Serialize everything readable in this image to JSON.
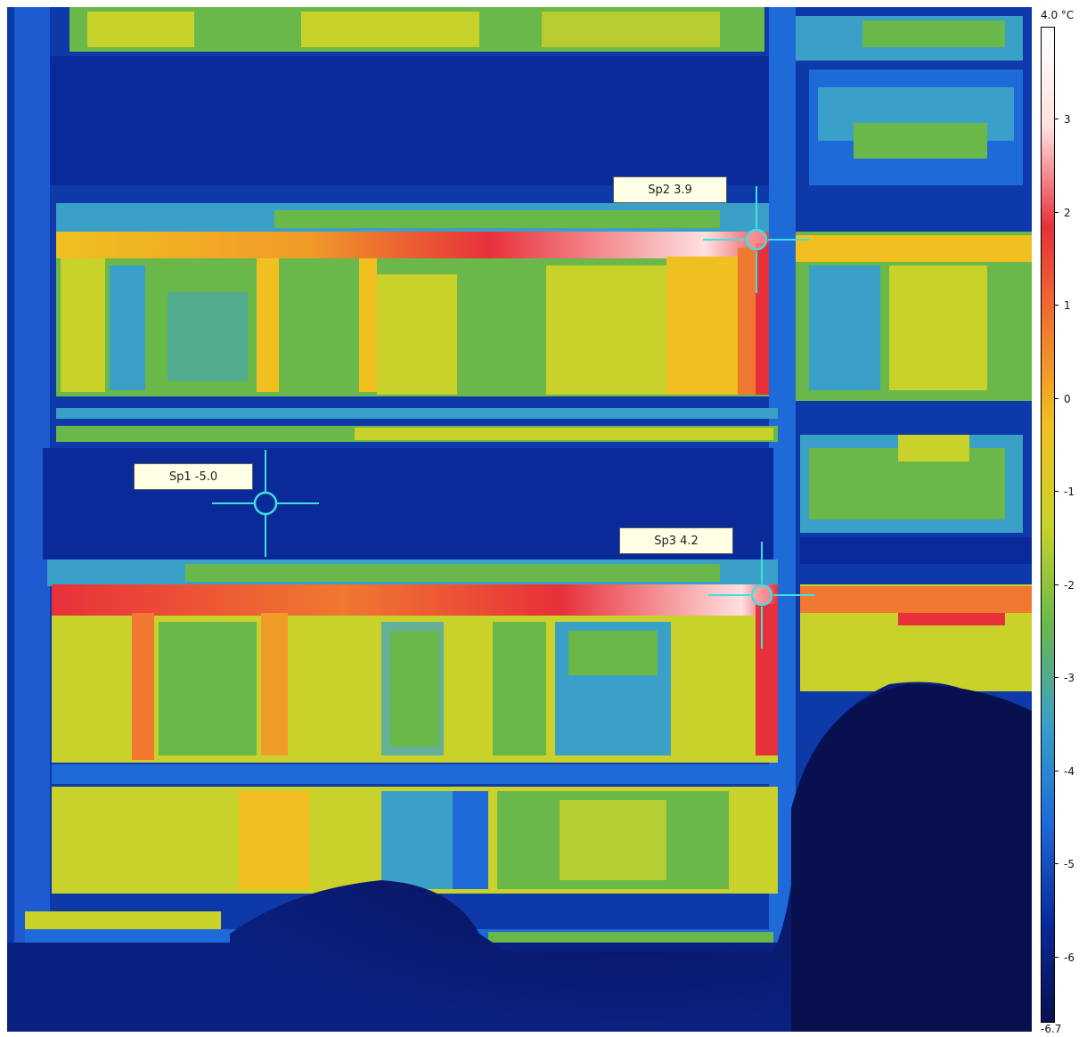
{
  "thermal_view": {
    "palette": [
      "#081050",
      "#0a2a9a",
      "#1e6ad8",
      "#3ba0c8",
      "#6ab84a",
      "#c8d22a",
      "#f0c020",
      "#f07830",
      "#e8303a",
      "#ffe0e0",
      "#ffffff"
    ]
  },
  "spots": [
    {
      "label": "Sp1 -5.0"
    },
    {
      "label": "Sp2 3.9"
    },
    {
      "label": "Sp3 4.2"
    }
  ],
  "colorbar": {
    "max_label": "4.0 °C",
    "min_label": "-6.7",
    "max_value": 4.0,
    "min_value": -6.7,
    "ticks": [
      "3",
      "2",
      "1",
      "0",
      "-1",
      "-2",
      "-3",
      "-4",
      "-5",
      "-6"
    ],
    "tick_values": [
      3,
      2,
      1,
      0,
      -1,
      -2,
      -3,
      -4,
      -5,
      -6
    ]
  }
}
